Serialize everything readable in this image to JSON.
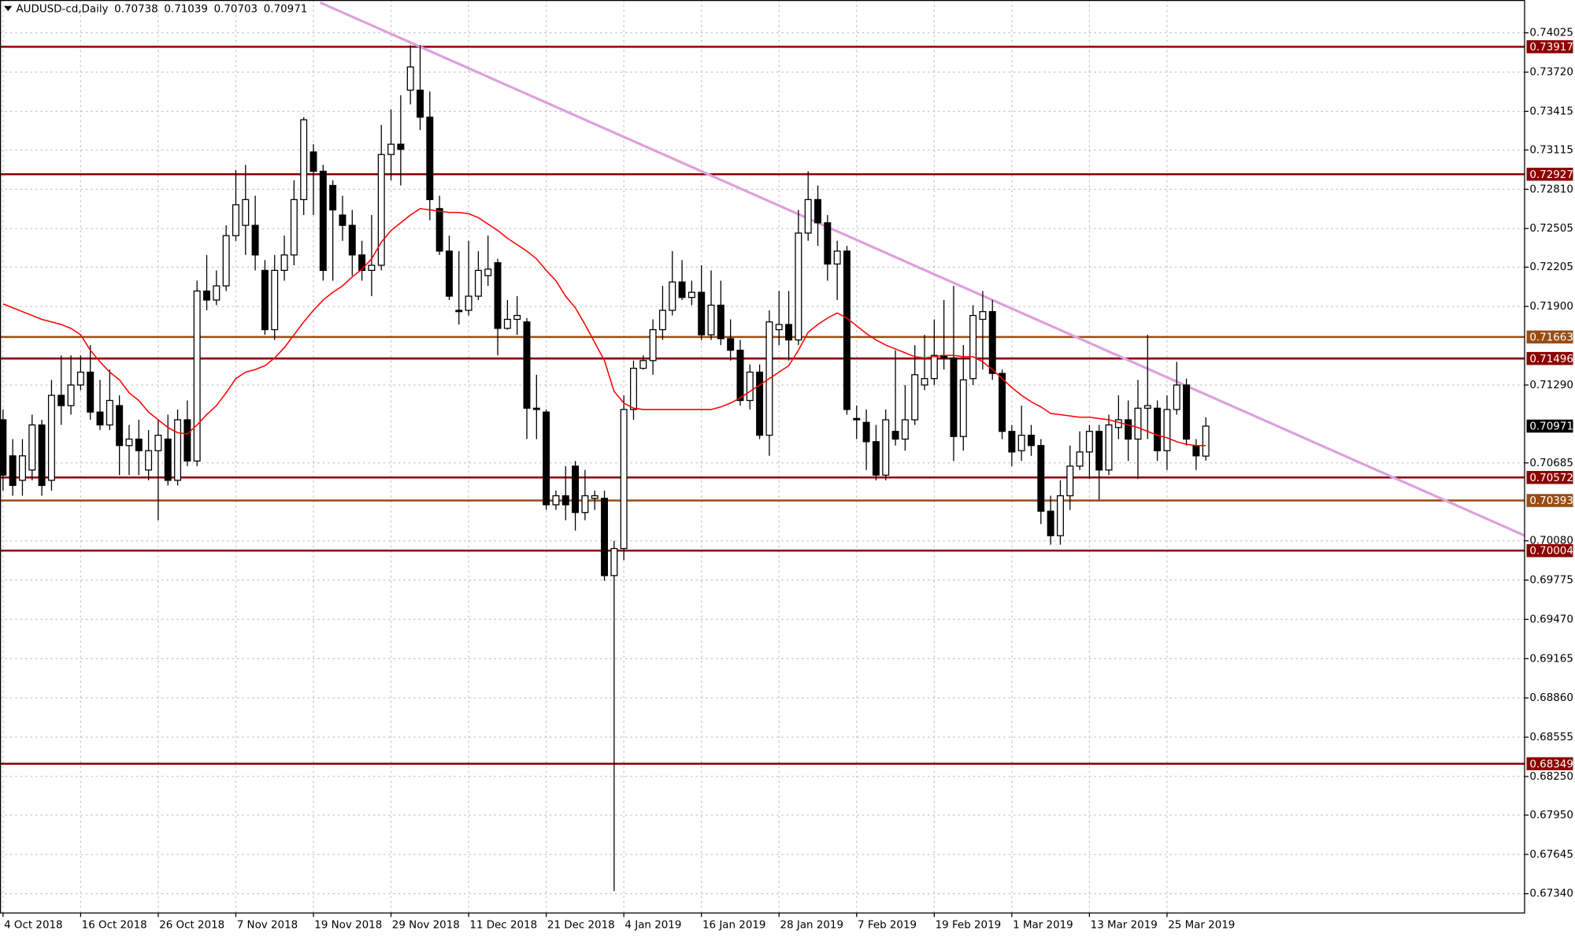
{
  "chart_data": {
    "type": "candlestick",
    "title": "AUDUSD-cd,Daily",
    "categories": [
      "4 Oct 2018",
      null,
      null,
      null,
      null,
      null,
      null,
      null,
      "16 Oct 2018",
      null,
      null,
      null,
      null,
      null,
      null,
      null,
      "26 Oct 2018",
      null,
      null,
      null,
      null,
      null,
      null,
      null,
      "7 Nov 2018",
      null,
      null,
      null,
      null,
      null,
      null,
      null,
      "19 Nov 2018",
      null,
      null,
      null,
      null,
      null,
      null,
      null,
      "29 Nov 2018",
      null,
      null,
      null,
      null,
      null,
      null,
      null,
      "11 Dec 2018",
      null,
      null,
      null,
      null,
      null,
      null,
      null,
      "21 Dec 2018",
      null,
      null,
      null,
      null,
      null,
      null,
      null,
      "4 Jan 2019",
      null,
      null,
      null,
      null,
      null,
      null,
      null,
      "16 Jan 2019",
      null,
      null,
      null,
      null,
      null,
      null,
      null,
      "28 Jan 2019",
      null,
      null,
      null,
      null,
      null,
      null,
      null,
      "7 Feb 2019",
      null,
      null,
      null,
      null,
      null,
      null,
      null,
      "19 Feb 2019",
      null,
      null,
      null,
      null,
      null,
      null,
      null,
      "1 Mar 2019",
      null,
      null,
      null,
      null,
      null,
      null,
      null,
      "13 Mar 2019",
      null,
      null,
      null,
      null,
      null,
      null,
      null,
      "25 Mar 2019",
      null,
      null,
      null,
      null
    ],
    "open": [
      0.7102,
      0.7074,
      0.7055,
      0.7063,
      0.7098,
      0.7055,
      0.7121,
      0.7113,
      0.7129,
      0.7139,
      0.7108,
      0.7098,
      0.7113,
      0.7082,
      0.7087,
      0.7063,
      0.7078,
      0.7087,
      0.7055,
      0.7102,
      0.707,
      0.7202,
      0.7195,
      0.7206,
      0.7245,
      0.7253,
      0.7253,
      0.7218,
      0.7172,
      0.7218,
      0.723,
      0.7273,
      0.731,
      0.7295,
      0.7284,
      0.7261,
      0.7253,
      0.723,
      0.7218,
      0.7222,
      0.7308,
      0.7316,
      0.7358,
      0.7358,
      0.7337,
      0.7266,
      0.7233,
      0.7187,
      0.7187,
      0.7198,
      0.7214,
      0.7224,
      0.7173,
      0.718,
      0.7178,
      0.7111,
      0.7108,
      0.7036,
      0.7043,
      0.7066,
      0.703,
      0.7041,
      0.7041,
      0.6981,
      0.7002,
      0.711,
      0.7142,
      0.7148,
      0.7172,
      0.7187,
      0.7209,
      0.7197,
      0.7201,
      0.7168,
      0.7191,
      0.7165,
      0.7156,
      0.7117,
      0.7139,
      0.709,
      0.7172,
      0.7176,
      0.7164,
      0.7247,
      0.7273,
      0.7255,
      0.7223,
      0.7233,
      0.7103,
      0.71,
      0.7085,
      0.7059,
      0.7093,
      0.7087,
      0.7102,
      0.7129,
      0.7134,
      0.7152,
      0.715,
      0.7089,
      0.7134,
      0.718,
      0.7186,
      0.7138,
      0.7093,
      0.7078,
      0.709,
      0.7082,
      0.7031,
      0.7012,
      0.7043,
      0.7066,
      0.7077,
      0.7093,
      0.7063,
      0.7096,
      0.7102,
      0.7087,
      0.7111,
      0.7111,
      0.7078,
      0.711,
      0.7129,
      0.7082,
      0.70738
    ],
    "high": [
      0.711,
      0.7087,
      0.7087,
      0.7106,
      0.7102,
      0.7133,
      0.7152,
      0.7152,
      0.7152,
      0.716,
      0.7133,
      0.7141,
      0.7121,
      0.7098,
      0.7102,
      0.7094,
      0.7102,
      0.7106,
      0.711,
      0.7117,
      0.721,
      0.723,
      0.7218,
      0.7253,
      0.7296,
      0.73,
      0.7276,
      0.7226,
      0.723,
      0.7245,
      0.7288,
      0.7337,
      0.7316,
      0.73,
      0.7288,
      0.7276,
      0.7265,
      0.7241,
      0.7261,
      0.7331,
      0.7343,
      0.7354,
      0.7393,
      0.7393,
      0.7357,
      0.7276,
      0.7245,
      0.7233,
      0.7241,
      0.7233,
      0.7245,
      0.7227,
      0.7195,
      0.7198,
      0.7181,
      0.7137,
      0.711,
      0.7047,
      0.7066,
      0.707,
      0.7063,
      0.7047,
      0.7047,
      0.7008,
      0.7121,
      0.7148,
      0.7152,
      0.718,
      0.7206,
      0.7233,
      0.7226,
      0.721,
      0.7222,
      0.7218,
      0.721,
      0.718,
      0.7164,
      0.7145,
      0.7145,
      0.7187,
      0.7202,
      0.7202,
      0.7265,
      0.7295,
      0.7284,
      0.7261,
      0.7241,
      0.7237,
      0.7113,
      0.711,
      0.7098,
      0.711,
      0.7156,
      0.7129,
      0.716,
      0.7168,
      0.718,
      0.7195,
      0.7206,
      0.716,
      0.7191,
      0.7202,
      0.7195,
      0.7141,
      0.7098,
      0.7113,
      0.7098,
      0.7087,
      0.7043,
      0.7055,
      0.7082,
      0.7093,
      0.7098,
      0.7098,
      0.7106,
      0.7121,
      0.7117,
      0.7133,
      0.7168,
      0.7117,
      0.7121,
      0.7147,
      0.7134,
      0.7087,
      0.71039
    ],
    "low": [
      0.7047,
      0.7043,
      0.7043,
      0.7055,
      0.7043,
      0.7047,
      0.7098,
      0.7106,
      0.7125,
      0.7102,
      0.7094,
      0.7094,
      0.7059,
      0.7059,
      0.7059,
      0.7055,
      0.7024,
      0.7051,
      0.7051,
      0.7066,
      0.7066,
      0.7187,
      0.7191,
      0.7202,
      0.7241,
      0.723,
      0.7218,
      0.7168,
      0.7164,
      0.721,
      0.7222,
      0.7261,
      0.7261,
      0.721,
      0.721,
      0.7241,
      0.7214,
      0.721,
      0.7198,
      0.7218,
      0.7288,
      0.7284,
      0.7347,
      0.7327,
      0.7257,
      0.723,
      0.7195,
      0.7176,
      0.7183,
      0.7195,
      0.7206,
      0.7152,
      0.7172,
      0.7168,
      0.7087,
      0.7087,
      0.7032,
      0.7032,
      0.7024,
      0.7016,
      0.7024,
      0.7032,
      0.6977,
      0.6736,
      0.6993,
      0.7102,
      0.7141,
      0.7137,
      0.7164,
      0.7183,
      0.7195,
      0.7191,
      0.7164,
      0.7164,
      0.716,
      0.7148,
      0.7113,
      0.711,
      0.7087,
      0.7074,
      0.716,
      0.7148,
      0.716,
      0.7241,
      0.7237,
      0.721,
      0.7195,
      0.7106,
      0.7087,
      0.7063,
      0.7055,
      0.7055,
      0.7082,
      0.7078,
      0.7098,
      0.7125,
      0.7129,
      0.7141,
      0.707,
      0.7078,
      0.7129,
      0.7141,
      0.7133,
      0.7087,
      0.7066,
      0.707,
      0.7074,
      0.7021,
      0.7005,
      0.7005,
      0.7032,
      0.7063,
      0.7056,
      0.704,
      0.7059,
      0.7087,
      0.707,
      0.7056,
      0.7087,
      0.707,
      0.7063,
      0.7106,
      0.7082,
      0.7063,
      0.70703
    ],
    "close": [
      0.7059,
      0.7051,
      0.7074,
      0.7098,
      0.7051,
      0.7121,
      0.7113,
      0.7129,
      0.7139,
      0.7108,
      0.7098,
      0.7117,
      0.7082,
      0.7087,
      0.7078,
      0.7078,
      0.709,
      0.7055,
      0.7102,
      0.707,
      0.7202,
      0.7195,
      0.7206,
      0.7245,
      0.7269,
      0.7273,
      0.723,
      0.7172,
      0.7218,
      0.723,
      0.7273,
      0.7335,
      0.7295,
      0.7218,
      0.7265,
      0.7253,
      0.723,
      0.7218,
      0.7222,
      0.7308,
      0.7316,
      0.7312,
      0.7376,
      0.7337,
      0.7273,
      0.7233,
      0.7198,
      0.7186,
      0.7198,
      0.7218,
      0.7219,
      0.7173,
      0.718,
      0.7183,
      0.7111,
      0.711,
      0.7036,
      0.7043,
      0.7036,
      0.703,
      0.7043,
      0.7043,
      0.6981,
      0.7002,
      0.711,
      0.7142,
      0.7148,
      0.7172,
      0.7187,
      0.7209,
      0.7197,
      0.7201,
      0.7168,
      0.7191,
      0.7165,
      0.7156,
      0.7117,
      0.7139,
      0.709,
      0.7178,
      0.7176,
      0.7164,
      0.7247,
      0.7273,
      0.7255,
      0.7223,
      0.7233,
      0.711,
      0.7102,
      0.7085,
      0.7059,
      0.7102,
      0.7087,
      0.7102,
      0.7137,
      0.7134,
      0.7152,
      0.715,
      0.7089,
      0.7133,
      0.7183,
      0.7186,
      0.7138,
      0.7093,
      0.7077,
      0.709,
      0.7082,
      0.7031,
      0.7012,
      0.7043,
      0.7066,
      0.7077,
      0.7093,
      0.7063,
      0.7098,
      0.7102,
      0.7087,
      0.7111,
      0.7113,
      0.7078,
      0.711,
      0.7129,
      0.7087,
      0.7074,
      0.70971
    ],
    "up_color": "#ffffff",
    "down_color": "#000000",
    "moving_average": {
      "color": "#ff0000",
      "values": [
        0.7192,
        0.7189,
        0.7186,
        0.7183,
        0.718,
        0.7178,
        0.7176,
        0.7173,
        0.7168,
        0.7156,
        0.7147,
        0.7139,
        0.7133,
        0.7123,
        0.7117,
        0.7108,
        0.7102,
        0.7096,
        0.7092,
        0.7091,
        0.7098,
        0.7106,
        0.7113,
        0.7123,
        0.7134,
        0.7139,
        0.7141,
        0.7144,
        0.715,
        0.7158,
        0.7168,
        0.7178,
        0.7187,
        0.7195,
        0.7201,
        0.7206,
        0.7213,
        0.7219,
        0.7227,
        0.724,
        0.7249,
        0.7255,
        0.7261,
        0.7266,
        0.7265,
        0.7264,
        0.7263,
        0.7263,
        0.7262,
        0.7259,
        0.7254,
        0.7249,
        0.7243,
        0.7238,
        0.7233,
        0.7227,
        0.7218,
        0.721,
        0.7198,
        0.7189,
        0.7176,
        0.7162,
        0.7148,
        0.7124,
        0.7115,
        0.7111,
        0.711,
        0.711,
        0.711,
        0.711,
        0.711,
        0.711,
        0.711,
        0.711,
        0.7112,
        0.7115,
        0.7119,
        0.7124,
        0.7129,
        0.7134,
        0.7139,
        0.7144,
        0.7156,
        0.717,
        0.7176,
        0.7181,
        0.7185,
        0.7181,
        0.7175,
        0.7169,
        0.7164,
        0.716,
        0.7157,
        0.7154,
        0.7151,
        0.715,
        0.7151,
        0.7152,
        0.7152,
        0.7151,
        0.7151,
        0.7147,
        0.7141,
        0.7134,
        0.7127,
        0.7121,
        0.7116,
        0.7112,
        0.7107,
        0.7106,
        0.7105,
        0.7104,
        0.7104,
        0.7103,
        0.7102,
        0.71,
        0.7098,
        0.7096,
        0.7093,
        0.709,
        0.7088,
        0.7085,
        0.7083,
        0.7082,
        0.7082
      ]
    },
    "trendline": {
      "color": "#dda0dd",
      "x": [
        32.7,
        156.9
      ],
      "values": [
        0.7426,
        0.7012
      ]
    },
    "levels": [
      {
        "value": 0.73917,
        "color": "#8b0000"
      },
      {
        "value": 0.72927,
        "color": "#8b0000"
      },
      {
        "value": 0.71663,
        "color": "#994c14"
      },
      {
        "value": 0.71496,
        "color": "#8b0000"
      },
      {
        "value": 0.70572,
        "color": "#8b0000"
      },
      {
        "value": 0.70393,
        "color": "#994c14"
      },
      {
        "value": 0.70004,
        "color": "#8b0000"
      },
      {
        "value": 0.68349,
        "color": "#8b0000"
      }
    ],
    "ylim": [
      0.6719,
      0.7428
    ],
    "yticks": [
      0.74025,
      {
        "value": 0.7372,
        "label": "0.73720"
      },
      0.73415,
      0.73115,
      {
        "value": 0.7281,
        "label": "0.72810"
      },
      0.72505,
      0.72205,
      {
        "value": 0.719,
        "label": "0.71900"
      },
      {
        "value": 0.7129,
        "label": "0.71290"
      },
      0.70685,
      {
        "value": 0.7008,
        "label": "0.70080"
      },
      0.69775,
      {
        "value": 0.6947,
        "label": "0.69470"
      },
      0.69165,
      {
        "value": 0.6886,
        "label": "0.68860"
      },
      0.68555,
      {
        "value": 0.6825,
        "label": "0.68250"
      },
      {
        "value": 0.6795,
        "label": "0.67950"
      },
      0.67645,
      {
        "value": 0.6734,
        "label": "0.67340"
      }
    ],
    "grid": true
  }
}
